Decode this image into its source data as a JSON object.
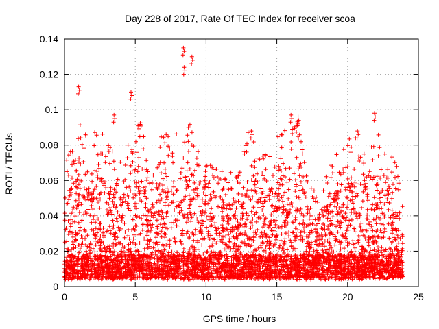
{
  "chart_data": {
    "type": "scatter",
    "title": "Day 228 of 2017, Rate Of TEC Index for receiver scoa",
    "xlabel": "GPS time / hours",
    "ylabel": "ROTI / TECUs",
    "xlim": [
      0,
      25
    ],
    "ylim": [
      0,
      0.14
    ],
    "xticks": [
      0,
      5,
      10,
      15,
      20,
      25
    ],
    "xtick_labels": [
      "0",
      "5",
      "10",
      "15",
      "20",
      "25"
    ],
    "yticks": [
      0,
      0.02,
      0.04,
      0.06,
      0.08,
      0.1,
      0.12,
      0.14
    ],
    "ytick_labels": [
      "0",
      "0.02",
      "0.04",
      "0.06",
      "0.08",
      "0.1",
      "0.12",
      "0.14"
    ],
    "grid": true,
    "marker": "plus",
    "marker_color": "#ff0000",
    "x_range_observed": [
      0,
      23.9
    ],
    "notable_peaks": [
      {
        "x": 1.0,
        "y": 0.113
      },
      {
        "x": 3.5,
        "y": 0.097
      },
      {
        "x": 4.7,
        "y": 0.11
      },
      {
        "x": 8.4,
        "y": 0.135
      },
      {
        "x": 8.45,
        "y": 0.124
      },
      {
        "x": 9.0,
        "y": 0.13
      },
      {
        "x": 13.2,
        "y": 0.088
      },
      {
        "x": 16.0,
        "y": 0.097
      },
      {
        "x": 16.5,
        "y": 0.096
      },
      {
        "x": 20.7,
        "y": 0.088
      },
      {
        "x": 21.9,
        "y": 0.098
      }
    ],
    "envelope": {
      "x": [
        0,
        0.5,
        1,
        1.5,
        2,
        2.5,
        3,
        3.5,
        4,
        4.5,
        5,
        5.5,
        6,
        6.5,
        7,
        7.5,
        8,
        8.5,
        9,
        9.5,
        10,
        10.5,
        11,
        11.5,
        12,
        12.5,
        13,
        13.5,
        14,
        14.5,
        15,
        15.5,
        16,
        16.5,
        17,
        17.5,
        18,
        18.5,
        19,
        19.5,
        20,
        20.5,
        21,
        21.5,
        22,
        22.5,
        23,
        23.5,
        23.9
      ],
      "upper": [
        0.06,
        0.083,
        0.09,
        0.085,
        0.09,
        0.085,
        0.075,
        0.08,
        0.07,
        0.09,
        0.095,
        0.085,
        0.06,
        0.07,
        0.085,
        0.08,
        0.085,
        0.085,
        0.09,
        0.075,
        0.08,
        0.07,
        0.065,
        0.06,
        0.06,
        0.07,
        0.088,
        0.082,
        0.075,
        0.07,
        0.08,
        0.083,
        0.09,
        0.09,
        0.065,
        0.055,
        0.05,
        0.06,
        0.07,
        0.07,
        0.08,
        0.08,
        0.075,
        0.08,
        0.09,
        0.075,
        0.07,
        0.065,
        0.04
      ]
    }
  }
}
